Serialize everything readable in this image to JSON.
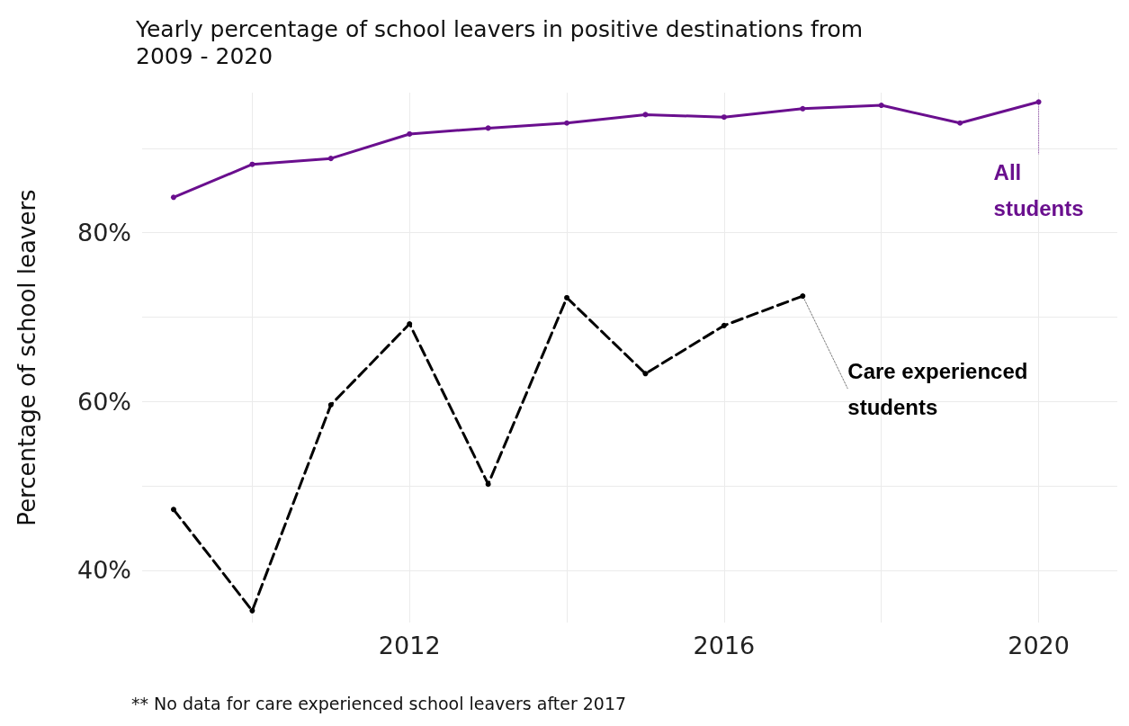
{
  "chart_data": {
    "type": "line",
    "title": "Yearly percentage of school leavers in positive destinations from\n2009 - 2020",
    "ylabel": "Percentage of school leavers",
    "x": [
      2009,
      2010,
      2011,
      2012,
      2013,
      2014,
      2015,
      2016,
      2017,
      2018,
      2019,
      2020
    ],
    "series": [
      {
        "name": "All students",
        "color": "#6a0f8e",
        "line_style": "solid",
        "values": [
          84.2,
          88.1,
          88.8,
          91.7,
          92.4,
          93.0,
          94.0,
          93.7,
          94.7,
          95.1,
          93.0,
          95.5
        ]
      },
      {
        "name": "Care experienced students",
        "color": "#000000",
        "line_style": "dashed",
        "values": [
          47.2,
          35.2,
          59.6,
          69.2,
          50.2,
          72.3,
          63.3,
          69.0,
          72.5,
          null,
          null,
          null
        ]
      }
    ],
    "xlim": [
      2008.6,
      2021
    ],
    "xticks": [
      {
        "value": 2010,
        "label": null
      },
      2012,
      {
        "value": 2014,
        "label": null
      },
      2016,
      {
        "value": 2018,
        "label": null
      },
      2020
    ],
    "ylim": [
      33.8,
      96.6
    ],
    "yticks": [
      {
        "value": 40,
        "label": "40%"
      },
      {
        "value": 50,
        "label": null
      },
      {
        "value": 60,
        "label": "60%"
      },
      {
        "value": 70,
        "label": null
      },
      {
        "value": 80,
        "label": "80%"
      },
      {
        "value": 90,
        "label": null
      }
    ],
    "grid": true,
    "marker": "circle",
    "annotations": [
      "** No data for care experienced school leavers after 2017"
    ]
  }
}
